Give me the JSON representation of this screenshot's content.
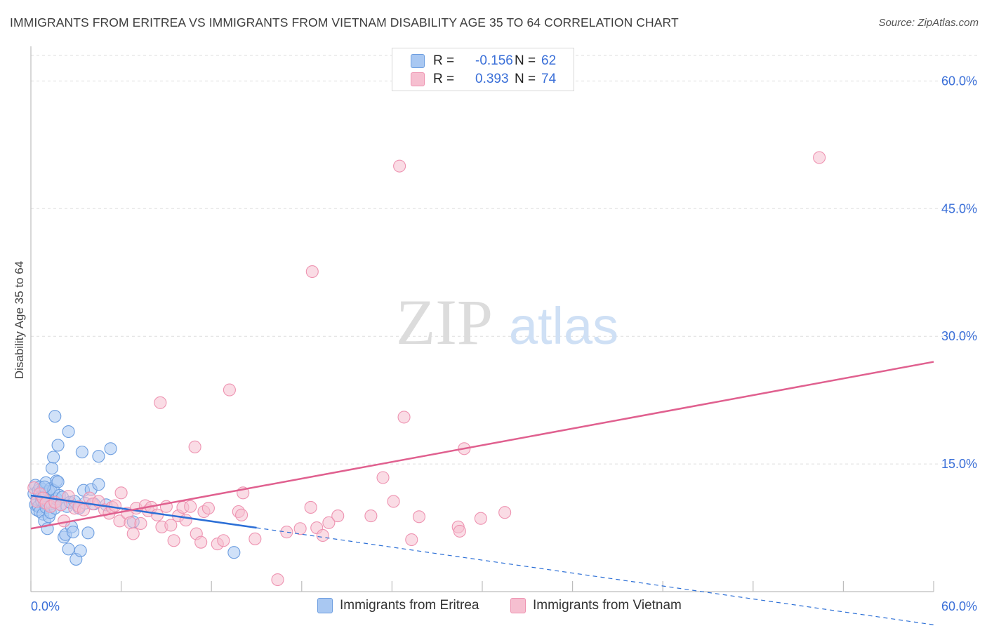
{
  "chart_data": {
    "type": "scatter",
    "title": "IMMIGRANTS FROM ERITREA VS IMMIGRANTS FROM VIETNAM DISABILITY AGE 35 TO 64 CORRELATION CHART",
    "source": "Source: ZipAtlas.com",
    "ylabel": "Disability Age 35 to 64",
    "xlabel": "",
    "xlim": [
      0,
      60
    ],
    "ylim": [
      0,
      63
    ],
    "x_tick_labels": [
      "0.0%",
      "60.0%"
    ],
    "y_ticks": [
      15,
      30,
      45,
      60
    ],
    "y_tick_labels": [
      "15.0%",
      "30.0%",
      "45.0%",
      "60.0%"
    ],
    "grid": "horizontal dashed",
    "watermark": {
      "zip": "ZIP",
      "atlas": "atlas"
    },
    "colors": {
      "eritrea_fill": "#a9c8f2",
      "eritrea_stroke": "#6d9ee0",
      "eritrea_line": "#2c6fd6",
      "vietnam_fill": "#f6bfd0",
      "vietnam_stroke": "#ee93b1",
      "vietnam_line": "#e0608f",
      "value_text": "#3a6fd8"
    },
    "legend": {
      "rows": [
        {
          "r_label": "R =",
          "r_value": "-0.156",
          "n_label": "N =",
          "n_value": "62"
        },
        {
          "r_label": "R =",
          "r_value": "0.393",
          "n_label": "N =",
          "n_value": "74"
        }
      ]
    },
    "series": [
      {
        "name": "Immigrants from Eritrea",
        "trend": {
          "x0": 0,
          "y0": 11.3,
          "x1": 15,
          "y1": 7.5,
          "dash_to_x": 60
        },
        "points": [
          [
            0.2,
            11.5
          ],
          [
            0.3,
            10.2
          ],
          [
            0.3,
            12.5
          ],
          [
            0.4,
            9.6
          ],
          [
            0.4,
            10.8
          ],
          [
            0.5,
            11.9
          ],
          [
            0.5,
            10.0
          ],
          [
            0.6,
            12.3
          ],
          [
            0.6,
            9.4
          ],
          [
            0.7,
            10.7
          ],
          [
            0.7,
            11.2
          ],
          [
            0.8,
            12.0
          ],
          [
            0.8,
            9.1
          ],
          [
            0.9,
            10.4
          ],
          [
            0.9,
            8.3
          ],
          [
            1.0,
            11.6
          ],
          [
            1.0,
            12.8
          ],
          [
            1.0,
            9.9
          ],
          [
            1.1,
            10.6
          ],
          [
            1.1,
            7.4
          ],
          [
            1.2,
            11.8
          ],
          [
            1.2,
            8.8
          ],
          [
            1.3,
            12.1
          ],
          [
            1.3,
            9.3
          ],
          [
            1.4,
            10.3
          ],
          [
            1.4,
            14.5
          ],
          [
            1.5,
            11.9
          ],
          [
            1.5,
            15.8
          ],
          [
            1.6,
            20.6
          ],
          [
            1.6,
            9.8
          ],
          [
            1.7,
            13.0
          ],
          [
            1.7,
            10.9
          ],
          [
            1.8,
            17.2
          ],
          [
            1.8,
            12.9
          ],
          [
            1.9,
            11.3
          ],
          [
            2.0,
            10.2
          ],
          [
            2.1,
            11.1
          ],
          [
            2.2,
            6.4
          ],
          [
            2.3,
            6.7
          ],
          [
            2.4,
            10.0
          ],
          [
            2.5,
            18.8
          ],
          [
            2.5,
            5.0
          ],
          [
            2.6,
            10.5
          ],
          [
            2.7,
            7.6
          ],
          [
            2.8,
            7.0
          ],
          [
            2.9,
            10.6
          ],
          [
            3.0,
            3.8
          ],
          [
            3.2,
            9.8
          ],
          [
            3.3,
            4.8
          ],
          [
            3.4,
            16.4
          ],
          [
            3.5,
            11.9
          ],
          [
            3.6,
            10.4
          ],
          [
            3.8,
            6.9
          ],
          [
            4.0,
            12.0
          ],
          [
            4.2,
            10.3
          ],
          [
            4.5,
            12.6
          ],
          [
            4.5,
            15.9
          ],
          [
            5.0,
            10.2
          ],
          [
            5.3,
            16.8
          ],
          [
            6.8,
            8.2
          ],
          [
            13.5,
            4.6
          ],
          [
            0.9,
            12.3
          ]
        ]
      },
      {
        "name": "Immigrants from Vietnam",
        "trend": {
          "x0": 0,
          "y0": 7.4,
          "x1": 60,
          "y1": 27.0
        },
        "points": [
          [
            0.2,
            12.2
          ],
          [
            0.4,
            10.6
          ],
          [
            0.6,
            11.5
          ],
          [
            0.8,
            11.0
          ],
          [
            1.0,
            10.4
          ],
          [
            1.3,
            10.0
          ],
          [
            1.6,
            10.5
          ],
          [
            2.0,
            10.2
          ],
          [
            2.2,
            8.3
          ],
          [
            2.5,
            11.2
          ],
          [
            2.9,
            9.8
          ],
          [
            3.2,
            10.0
          ],
          [
            3.5,
            9.6
          ],
          [
            3.9,
            11.0
          ],
          [
            4.1,
            10.3
          ],
          [
            4.5,
            10.6
          ],
          [
            4.9,
            9.6
          ],
          [
            5.2,
            9.2
          ],
          [
            5.4,
            9.9
          ],
          [
            5.6,
            10.1
          ],
          [
            5.9,
            8.3
          ],
          [
            6.0,
            11.6
          ],
          [
            6.4,
            9.2
          ],
          [
            6.6,
            8.1
          ],
          [
            6.8,
            6.8
          ],
          [
            7.0,
            9.8
          ],
          [
            7.3,
            8.0
          ],
          [
            7.6,
            10.1
          ],
          [
            7.8,
            9.5
          ],
          [
            8.0,
            9.9
          ],
          [
            8.4,
            9.0
          ],
          [
            8.7,
            7.6
          ],
          [
            9.0,
            10.0
          ],
          [
            9.3,
            7.8
          ],
          [
            9.5,
            6.0
          ],
          [
            9.8,
            8.9
          ],
          [
            10.1,
            9.9
          ],
          [
            10.3,
            8.4
          ],
          [
            10.6,
            10.0
          ],
          [
            11.0,
            6.8
          ],
          [
            11.3,
            5.8
          ],
          [
            11.5,
            9.4
          ],
          [
            11.8,
            9.8
          ],
          [
            12.4,
            5.6
          ],
          [
            12.8,
            6.0
          ],
          [
            13.2,
            23.7
          ],
          [
            13.8,
            9.4
          ],
          [
            14.0,
            9.0
          ],
          [
            14.1,
            11.6
          ],
          [
            14.9,
            6.2
          ],
          [
            16.4,
            1.4
          ],
          [
            17.0,
            7.0
          ],
          [
            17.9,
            7.4
          ],
          [
            18.6,
            9.9
          ],
          [
            18.7,
            37.6
          ],
          [
            19.0,
            7.5
          ],
          [
            19.4,
            6.6
          ],
          [
            19.8,
            8.1
          ],
          [
            20.4,
            8.9
          ],
          [
            22.6,
            8.9
          ],
          [
            23.4,
            13.4
          ],
          [
            24.1,
            10.6
          ],
          [
            24.5,
            50.0
          ],
          [
            24.8,
            20.5
          ],
          [
            25.3,
            6.1
          ],
          [
            25.8,
            8.8
          ],
          [
            28.4,
            7.6
          ],
          [
            28.5,
            7.1
          ],
          [
            28.8,
            16.8
          ],
          [
            29.9,
            8.6
          ],
          [
            31.5,
            9.3
          ],
          [
            52.4,
            51.0
          ],
          [
            8.6,
            22.2
          ],
          [
            10.9,
            17.0
          ]
        ]
      }
    ]
  },
  "bottom_legend": [
    "Immigrants from Eritrea",
    "Immigrants from Vietnam"
  ]
}
